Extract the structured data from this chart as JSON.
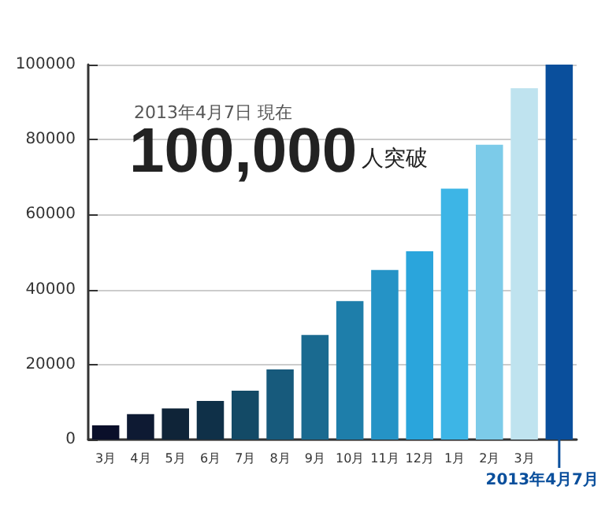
{
  "chart_data": {
    "type": "bar",
    "categories": [
      "3月",
      "4月",
      "5月",
      "6月",
      "7月",
      "8月",
      "9月",
      "10月",
      "11月",
      "12月",
      "1月",
      "2月",
      "3月",
      null
    ],
    "values": [
      3800,
      6800,
      8300,
      10300,
      13000,
      18700,
      27900,
      36900,
      45200,
      50200,
      66900,
      78600,
      93700,
      100000
    ],
    "colors": [
      "#0a0f2a",
      "#0e1a33",
      "#0f2438",
      "#0f3048",
      "#134a66",
      "#175a7c",
      "#1a6a90",
      "#1e7eaa",
      "#2593c6",
      "#2aa5dc",
      "#3db5e6",
      "#7ccbe9",
      "#bfe3ef",
      "#0a4f9c"
    ],
    "ylim": [
      0,
      100000
    ],
    "yticks": [
      0,
      20000,
      40000,
      60000,
      80000,
      100000
    ],
    "grid": "y",
    "annotations": [
      "2013年4月7日 現在",
      "100,000",
      "人突破",
      "2013年4月7月"
    ]
  }
}
